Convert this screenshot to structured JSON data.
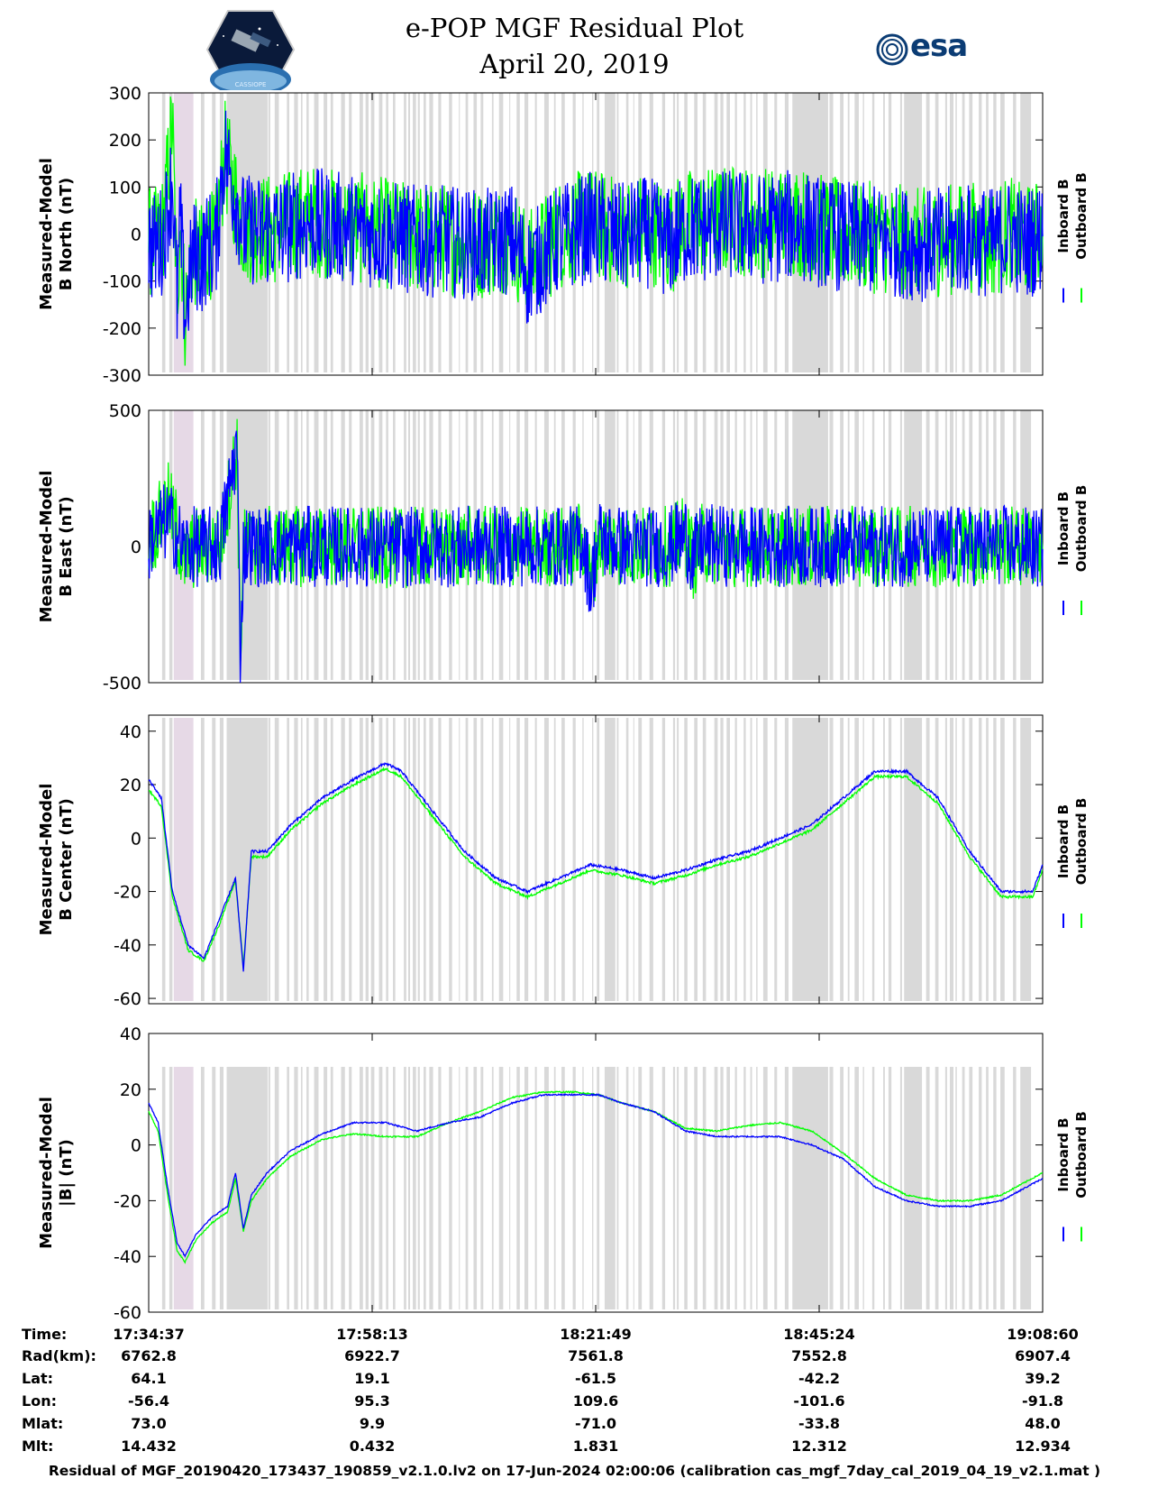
{
  "header": {
    "title_line1": "e-POP MGF Residual Plot",
    "title_line2": "April 20, 2019",
    "logo_left_text": "CASSIOPE",
    "logo_right_text": "esa"
  },
  "colors": {
    "inboard": "#0000ff",
    "outboard": "#00ff00",
    "gap_shading": "#d9d9d9",
    "gap_shading_pink": "#e6d9e6"
  },
  "legend": {
    "inboard": "Inboard B",
    "outboard": "Outboard B"
  },
  "chart_data": [
    {
      "type": "line",
      "id": "b_north",
      "ylabel_line1": "Measured-Model",
      "ylabel_line2": "B North (nT)",
      "ylim": [
        -300,
        300
      ],
      "yticks": [
        300,
        200,
        100,
        0,
        -100,
        -200,
        -300
      ],
      "xlim": [
        0,
        5663
      ],
      "series": [
        {
          "name": "Inboard B",
          "x": [
            0,
            40,
            90,
            150,
            180,
            200,
            230,
            280,
            330,
            380,
            420,
            480,
            600,
            800,
            1000,
            1300,
            1600,
            1750,
            1800,
            1900,
            2100,
            2300,
            2400,
            2600,
            2800,
            3000,
            3150,
            3300,
            3400,
            3550,
            3700,
            3900,
            4100,
            4300,
            4500,
            4700,
            4900,
            5100,
            5200,
            5350,
            5450,
            5550,
            5663
          ],
          "values": [
            -20,
            -30,
            -10,
            120,
            -150,
            30,
            -180,
            -40,
            -60,
            -20,
            -40,
            180,
            10,
            5,
            25,
            10,
            -10,
            -15,
            -15,
            -15,
            -25,
            -10,
            -80,
            -10,
            15,
            -10,
            5,
            -20,
            10,
            15,
            20,
            10,
            20,
            0,
            -10,
            -15,
            -25,
            -15,
            -10,
            -20,
            0,
            -20,
            -5
          ]
        },
        {
          "name": "Outboard B",
          "x": [
            0,
            40,
            90,
            150,
            180,
            200,
            230,
            280,
            330,
            380,
            420,
            480,
            600,
            800,
            1000,
            1300,
            1600,
            1750,
            1800,
            1900,
            2100,
            2300,
            2400,
            2600,
            2800,
            3000,
            3150,
            3300,
            3400,
            3550,
            3700,
            3900,
            4100,
            4300,
            4500,
            4700,
            4900,
            5100,
            5200,
            5350,
            5450,
            5550,
            5663
          ],
          "values": [
            -15,
            -20,
            10,
            240,
            -140,
            40,
            -170,
            -35,
            -55,
            -15,
            -35,
            170,
            15,
            10,
            30,
            15,
            -5,
            -10,
            -10,
            -10,
            -20,
            -5,
            -70,
            0,
            25,
            0,
            15,
            -10,
            20,
            25,
            30,
            25,
            30,
            5,
            -5,
            -10,
            -20,
            -10,
            -5,
            -15,
            5,
            -15,
            0
          ]
        }
      ]
    },
    {
      "type": "line",
      "id": "b_east",
      "ylabel_line1": "Measured-Model",
      "ylabel_line2": "B East (nT)",
      "ylim": [
        -500,
        500
      ],
      "yticks": [
        500,
        0,
        -500
      ],
      "xlim": [
        0,
        5663
      ],
      "series": [
        {
          "name": "Inboard B",
          "x": [
            0,
            60,
            120,
            180,
            220,
            300,
            450,
            560,
            580,
            600,
            620,
            680,
            800,
            1200,
            1600,
            2000,
            2400,
            2700,
            2750,
            2800,
            2850,
            3000,
            3300,
            3400,
            3450,
            3500,
            3700,
            4200,
            4600,
            5000,
            5400,
            5663
          ],
          "values": [
            20,
            60,
            100,
            40,
            -10,
            0,
            0,
            380,
            -420,
            -20,
            10,
            0,
            0,
            0,
            -5,
            0,
            0,
            0,
            30,
            -150,
            30,
            0,
            0,
            40,
            -50,
            10,
            0,
            0,
            0,
            0,
            5,
            -10
          ]
        },
        {
          "name": "Outboard B",
          "x": [
            0,
            60,
            120,
            180,
            220,
            300,
            450,
            560,
            580,
            600,
            620,
            680,
            800,
            1200,
            1600,
            2000,
            2400,
            2700,
            2750,
            2800,
            2850,
            3000,
            3300,
            3400,
            3450,
            3500,
            3700,
            4200,
            4600,
            5000,
            5400,
            5663
          ],
          "values": [
            30,
            80,
            170,
            60,
            -60,
            0,
            0,
            370,
            -410,
            -15,
            15,
            0,
            0,
            0,
            -5,
            0,
            0,
            0,
            30,
            -145,
            30,
            0,
            0,
            40,
            -45,
            10,
            0,
            0,
            0,
            0,
            5,
            -10
          ]
        }
      ]
    },
    {
      "type": "line",
      "id": "b_center",
      "ylabel_line1": "Measured-Model",
      "ylabel_line2": "B Center (nT)",
      "ylim": [
        -62,
        46
      ],
      "yticks": [
        40,
        20,
        0,
        -20,
        -40,
        -60
      ],
      "xlim": [
        0,
        5663
      ],
      "series": [
        {
          "name": "Inboard B",
          "x": [
            0,
            80,
            150,
            250,
            350,
            450,
            550,
            600,
            650,
            750,
            900,
            1100,
            1300,
            1500,
            1600,
            1800,
            2000,
            2200,
            2400,
            2600,
            2800,
            3000,
            3200,
            3400,
            3600,
            3800,
            4000,
            4200,
            4400,
            4600,
            4800,
            5000,
            5200,
            5400,
            5600,
            5663
          ],
          "values": [
            22,
            15,
            -20,
            -40,
            -45,
            -30,
            -15,
            -50,
            -5,
            -5,
            5,
            15,
            22,
            28,
            25,
            10,
            -5,
            -15,
            -20,
            -15,
            -10,
            -12,
            -15,
            -12,
            -8,
            -5,
            0,
            5,
            15,
            25,
            25,
            15,
            -5,
            -20,
            -20,
            -10
          ]
        },
        {
          "name": "Outboard B",
          "x": [
            0,
            80,
            150,
            250,
            350,
            450,
            550,
            600,
            650,
            750,
            900,
            1100,
            1300,
            1500,
            1600,
            1800,
            2000,
            2200,
            2400,
            2600,
            2800,
            3000,
            3200,
            3400,
            3600,
            3800,
            4000,
            4200,
            4400,
            4600,
            4800,
            5000,
            5200,
            5400,
            5600,
            5663
          ],
          "values": [
            18,
            12,
            -22,
            -42,
            -46,
            -32,
            -16,
            -48,
            -7,
            -7,
            3,
            13,
            20,
            26,
            23,
            8,
            -7,
            -17,
            -22,
            -17,
            -12,
            -14,
            -17,
            -14,
            -10,
            -7,
            -2,
            3,
            13,
            23,
            23,
            13,
            -7,
            -22,
            -22,
            -12
          ]
        }
      ]
    },
    {
      "type": "line",
      "id": "b_total",
      "ylabel_line1": "Measured-Model",
      "ylabel_line2": "|B| (nT)",
      "ylim": [
        -60,
        40
      ],
      "yticks": [
        40,
        20,
        0,
        -20,
        -40,
        -60
      ],
      "xlim": [
        0,
        5663
      ],
      "series": [
        {
          "name": "Inboard B",
          "x": [
            0,
            60,
            120,
            180,
            230,
            300,
            400,
            500,
            550,
            600,
            650,
            750,
            900,
            1100,
            1300,
            1500,
            1700,
            1900,
            2100,
            2300,
            2500,
            2700,
            2850,
            3000,
            3200,
            3400,
            3600,
            3800,
            4000,
            4200,
            4400,
            4600,
            4800,
            5000,
            5200,
            5400,
            5663
          ],
          "values": [
            15,
            8,
            -15,
            -35,
            -40,
            -32,
            -26,
            -22,
            -10,
            -30,
            -18,
            -10,
            -2,
            4,
            8,
            8,
            5,
            8,
            10,
            15,
            18,
            18,
            18,
            15,
            12,
            5,
            3,
            3,
            3,
            0,
            -5,
            -15,
            -20,
            -22,
            -22,
            -20,
            -12
          ]
        },
        {
          "name": "Outboard B",
          "x": [
            0,
            60,
            120,
            180,
            230,
            300,
            400,
            500,
            550,
            600,
            650,
            750,
            900,
            1100,
            1300,
            1500,
            1700,
            1900,
            2100,
            2300,
            2500,
            2700,
            2850,
            3000,
            3200,
            3400,
            3600,
            3800,
            4000,
            4200,
            4400,
            4600,
            4800,
            5000,
            5200,
            5400,
            5663
          ],
          "values": [
            12,
            5,
            -18,
            -38,
            -42,
            -34,
            -28,
            -24,
            -12,
            -31,
            -20,
            -12,
            -4,
            2,
            4,
            3,
            3,
            8,
            12,
            17,
            19,
            19,
            18,
            15,
            12,
            6,
            5,
            7,
            8,
            5,
            -3,
            -12,
            -18,
            -20,
            -20,
            -18,
            -10
          ]
        }
      ]
    }
  ],
  "x_axis": {
    "tick_fractions_note": "ticks at equal fifths of the time axis",
    "rows": [
      {
        "label": "Time:",
        "values": [
          "17:34:37",
          "17:58:13",
          "18:21:49",
          "18:45:24",
          "19:08:60"
        ]
      },
      {
        "label": "Rad(km):",
        "values": [
          "6762.8",
          "6922.7",
          "7561.8",
          "7552.8",
          "6907.4"
        ]
      },
      {
        "label": "Lat:",
        "values": [
          "64.1",
          "19.1",
          "-61.5",
          "-42.2",
          "39.2"
        ]
      },
      {
        "label": "Lon:",
        "values": [
          "-56.4",
          "95.3",
          "109.6",
          "-101.6",
          "-91.8"
        ]
      },
      {
        "label": "Mlat:",
        "values": [
          "73.0",
          "9.9",
          "-71.0",
          "-33.8",
          "48.0"
        ]
      },
      {
        "label": "Mlt:",
        "values": [
          "14.432",
          "0.432",
          "1.831",
          "12.312",
          "12.934"
        ]
      }
    ]
  },
  "footer": {
    "text": "Residual of MGF_20190420_173437_190859_v2.1.0.lv2 on 17-Jun-2024 02:00:06 (calibration cas_mgf_7day_cal_2019_04_19_v2.1.mat )"
  }
}
